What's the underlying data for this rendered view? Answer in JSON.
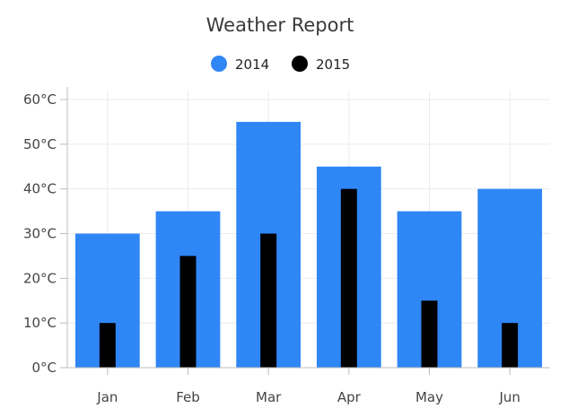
{
  "chart_data": {
    "type": "bar",
    "title": "Weather Report",
    "categories": [
      "Jan",
      "Feb",
      "Mar",
      "Apr",
      "May",
      "Jun"
    ],
    "series": [
      {
        "name": "2014",
        "values": [
          30,
          35,
          55,
          45,
          35,
          40
        ],
        "color": "#2f86f5"
      },
      {
        "name": "2015",
        "values": [
          10,
          25,
          30,
          40,
          15,
          10
        ],
        "color": "#000000"
      }
    ],
    "ylim": [
      0,
      60
    ],
    "yticks": [
      0,
      10,
      20,
      30,
      40,
      50,
      60
    ],
    "ytick_labels": [
      "0°C",
      "10°C",
      "20°C",
      "30°C",
      "40°C",
      "50°C",
      "60°C"
    ],
    "xlabel": "",
    "ylabel": "",
    "legend_position": "top-center",
    "grid": true,
    "overlap": true
  }
}
